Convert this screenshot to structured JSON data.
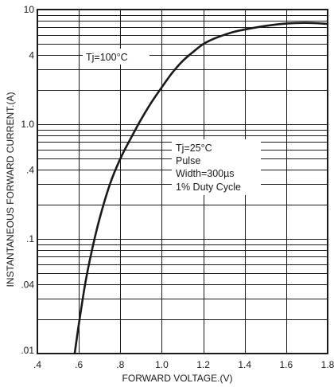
{
  "chart_data": {
    "type": "line",
    "title": "",
    "xlabel": "FORWARD VOLTAGE.(V)",
    "ylabel": "INSTANTANEOUS FORWARD CURRENT.(A)",
    "x_scale": "linear",
    "y_scale": "log",
    "xlim": [
      0.4,
      1.8
    ],
    "ylim": [
      0.01,
      10
    ],
    "x_ticks": [
      0.4,
      0.6,
      0.8,
      1.0,
      1.2,
      1.4,
      1.6,
      1.8
    ],
    "x_tick_labels": [
      ".4",
      ".6",
      ".8",
      "1.0",
      "1.2",
      "1.4",
      "1.6",
      "1.8"
    ],
    "y_ticks": [
      0.01,
      0.04,
      0.1,
      0.4,
      1.0,
      4,
      10
    ],
    "y_tick_labels": [
      ".01",
      ".04",
      ".1",
      ".4",
      "1.0",
      "4",
      "10"
    ],
    "grid": true,
    "series": [
      {
        "x": [
          0.58,
          0.6,
          0.63,
          0.66,
          0.7,
          0.75,
          0.8,
          0.85,
          0.9,
          0.95,
          1.0,
          1.05,
          1.1,
          1.15,
          1.2,
          1.25,
          1.3,
          1.35,
          1.4,
          1.5,
          1.6,
          1.7,
          1.8
        ],
        "y": [
          0.01,
          0.018,
          0.04,
          0.075,
          0.15,
          0.3,
          0.5,
          0.75,
          1.1,
          1.55,
          2.1,
          2.8,
          3.55,
          4.25,
          5.0,
          5.55,
          6.0,
          6.4,
          6.7,
          7.2,
          7.55,
          7.65,
          7.5
        ]
      }
    ],
    "annotations": [
      {
        "id": "tj100",
        "lines": [
          "Tj=100°C"
        ]
      },
      {
        "id": "tj25",
        "lines": [
          "Tj=25°C",
          "Pulse",
          "Width=300µs",
          "1% Duty Cycle"
        ]
      }
    ]
  }
}
